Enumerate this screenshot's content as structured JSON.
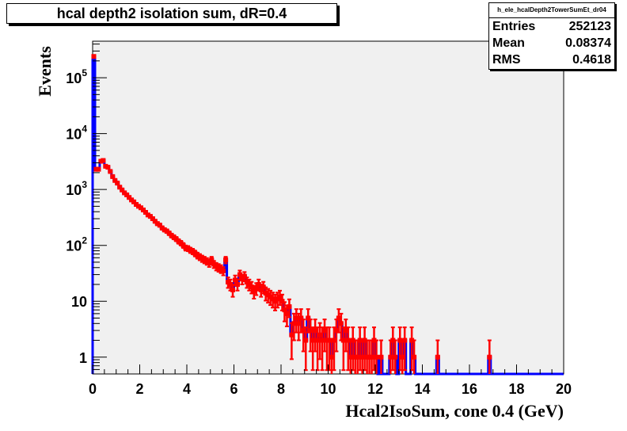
{
  "chart_data": {
    "type": "histogram",
    "title": "hcal depth2 isolation sum, dR=0.4",
    "xlabel": "Hcal2IsoSum, cone 0.4 (GeV)",
    "ylabel": "Events",
    "xlim": [
      0,
      20
    ],
    "ylim": [
      0.5,
      450000
    ],
    "yscale": "log",
    "grid": false,
    "legend": "none",
    "xticks": [
      "0",
      "2",
      "4",
      "6",
      "8",
      "10",
      "12",
      "14",
      "16",
      "18",
      "20"
    ],
    "yticks": [
      {
        "value": 1,
        "label": "1"
      },
      {
        "value": 10,
        "label": "10"
      },
      {
        "value": 100,
        "label": "10^2"
      },
      {
        "value": 1000,
        "label": "10^3"
      },
      {
        "value": 10000,
        "label": "10^4"
      },
      {
        "value": 100000,
        "label": "10^5"
      }
    ],
    "stats": {
      "name": "h_ele_hcalDepth2TowerSumEt_dr04",
      "rows": [
        {
          "label": "Entries",
          "value": "252123"
        },
        {
          "label": "Mean",
          "value": "0.08374"
        },
        {
          "label": "RMS",
          "value": "0.4618"
        }
      ]
    },
    "bin_width": 0.1,
    "line_color": "#0000ff",
    "marker_color": "#ff0000",
    "frame_color": "#f0f0f0",
    "bins": [
      {
        "x": 0.05,
        "y": 240000
      },
      {
        "x": 0.15,
        "y": 2300
      },
      {
        "x": 0.25,
        "y": 2300
      },
      {
        "x": 0.35,
        "y": 3200
      },
      {
        "x": 0.45,
        "y": 3300
      },
      {
        "x": 0.55,
        "y": 2600
      },
      {
        "x": 0.65,
        "y": 2500
      },
      {
        "x": 0.75,
        "y": 2100
      },
      {
        "x": 0.85,
        "y": 1700
      },
      {
        "x": 0.95,
        "y": 1450
      },
      {
        "x": 1.05,
        "y": 1300
      },
      {
        "x": 1.15,
        "y": 1100
      },
      {
        "x": 1.25,
        "y": 980
      },
      {
        "x": 1.35,
        "y": 870
      },
      {
        "x": 1.45,
        "y": 800
      },
      {
        "x": 1.55,
        "y": 720
      },
      {
        "x": 1.65,
        "y": 650
      },
      {
        "x": 1.75,
        "y": 600
      },
      {
        "x": 1.85,
        "y": 540
      },
      {
        "x": 1.95,
        "y": 500
      },
      {
        "x": 2.05,
        "y": 470
      },
      {
        "x": 2.15,
        "y": 430
      },
      {
        "x": 2.25,
        "y": 390
      },
      {
        "x": 2.35,
        "y": 350
      },
      {
        "x": 2.45,
        "y": 330
      },
      {
        "x": 2.55,
        "y": 300
      },
      {
        "x": 2.65,
        "y": 270
      },
      {
        "x": 2.75,
        "y": 245
      },
      {
        "x": 2.85,
        "y": 230
      },
      {
        "x": 2.95,
        "y": 205
      },
      {
        "x": 3.05,
        "y": 190
      },
      {
        "x": 3.15,
        "y": 180
      },
      {
        "x": 3.25,
        "y": 165
      },
      {
        "x": 3.35,
        "y": 150
      },
      {
        "x": 3.45,
        "y": 140
      },
      {
        "x": 3.55,
        "y": 130
      },
      {
        "x": 3.65,
        "y": 118
      },
      {
        "x": 3.75,
        "y": 110
      },
      {
        "x": 3.85,
        "y": 100
      },
      {
        "x": 3.95,
        "y": 90
      },
      {
        "x": 4.05,
        "y": 88
      },
      {
        "x": 4.15,
        "y": 82
      },
      {
        "x": 4.25,
        "y": 78
      },
      {
        "x": 4.35,
        "y": 72
      },
      {
        "x": 4.45,
        "y": 66
      },
      {
        "x": 4.55,
        "y": 62
      },
      {
        "x": 4.65,
        "y": 58
      },
      {
        "x": 4.75,
        "y": 55
      },
      {
        "x": 4.85,
        "y": 52
      },
      {
        "x": 4.95,
        "y": 48
      },
      {
        "x": 5.05,
        "y": 55
      },
      {
        "x": 5.15,
        "y": 46
      },
      {
        "x": 5.25,
        "y": 42
      },
      {
        "x": 5.35,
        "y": 40
      },
      {
        "x": 5.45,
        "y": 38
      },
      {
        "x": 5.55,
        "y": 35
      },
      {
        "x": 5.65,
        "y": 55
      },
      {
        "x": 5.75,
        "y": 22
      },
      {
        "x": 5.85,
        "y": 20
      },
      {
        "x": 5.95,
        "y": 16
      },
      {
        "x": 6.05,
        "y": 24
      },
      {
        "x": 6.15,
        "y": 20
      },
      {
        "x": 6.25,
        "y": 30
      },
      {
        "x": 6.35,
        "y": 25
      },
      {
        "x": 6.45,
        "y": 28
      },
      {
        "x": 6.55,
        "y": 22
      },
      {
        "x": 6.65,
        "y": 20
      },
      {
        "x": 6.75,
        "y": 18
      },
      {
        "x": 6.85,
        "y": 15
      },
      {
        "x": 6.95,
        "y": 17
      },
      {
        "x": 7.05,
        "y": 20
      },
      {
        "x": 7.15,
        "y": 16
      },
      {
        "x": 7.25,
        "y": 18
      },
      {
        "x": 7.35,
        "y": 14
      },
      {
        "x": 7.45,
        "y": 13
      },
      {
        "x": 7.55,
        "y": 12
      },
      {
        "x": 7.65,
        "y": 11
      },
      {
        "x": 7.75,
        "y": 10
      },
      {
        "x": 7.85,
        "y": 11
      },
      {
        "x": 7.95,
        "y": 12
      },
      {
        "x": 8.05,
        "y": 10
      },
      {
        "x": 8.15,
        "y": 7
      },
      {
        "x": 8.25,
        "y": 6
      },
      {
        "x": 8.35,
        "y": 8
      },
      {
        "x": 8.45,
        "y": 2.5
      },
      {
        "x": 8.55,
        "y": 4
      },
      {
        "x": 8.65,
        "y": 5
      },
      {
        "x": 8.75,
        "y": 4
      },
      {
        "x": 8.85,
        "y": 5
      },
      {
        "x": 8.95,
        "y": 3
      },
      {
        "x": 9.05,
        "y": 2
      },
      {
        "x": 9.15,
        "y": 5
      },
      {
        "x": 9.25,
        "y": 3
      },
      {
        "x": 9.35,
        "y": 2
      },
      {
        "x": 9.45,
        "y": 3
      },
      {
        "x": 9.55,
        "y": 2
      },
      {
        "x": 9.65,
        "y": 2.5
      },
      {
        "x": 9.75,
        "y": 2
      },
      {
        "x": 9.85,
        "y": 3
      },
      {
        "x": 9.95,
        "y": 2
      },
      {
        "x": 10.05,
        "y": 2
      },
      {
        "x": 10.15,
        "y": 1
      },
      {
        "x": 10.25,
        "y": 2
      },
      {
        "x": 10.35,
        "y": 3
      },
      {
        "x": 10.45,
        "y": 5
      },
      {
        "x": 10.55,
        "y": 4
      },
      {
        "x": 10.65,
        "y": 2
      },
      {
        "x": 10.75,
        "y": 3
      },
      {
        "x": 10.85,
        "y": 2
      },
      {
        "x": 10.95,
        "y": 1
      },
      {
        "x": 11.05,
        "y": 2
      },
      {
        "x": 11.15,
        "y": 1
      },
      {
        "x": 11.25,
        "y": 1
      },
      {
        "x": 11.35,
        "y": 2
      },
      {
        "x": 11.45,
        "y": 1
      },
      {
        "x": 11.55,
        "y": 2
      },
      {
        "x": 11.65,
        "y": 1
      },
      {
        "x": 11.75,
        "y": 1
      },
      {
        "x": 11.85,
        "y": 1
      },
      {
        "x": 11.95,
        "y": 2
      },
      {
        "x": 12.05,
        "y": 1
      },
      {
        "x": 12.25,
        "y": 1
      },
      {
        "x": 12.65,
        "y": 1
      },
      {
        "x": 12.75,
        "y": 2
      },
      {
        "x": 12.85,
        "y": 1
      },
      {
        "x": 13.05,
        "y": 2
      },
      {
        "x": 13.15,
        "y": 1
      },
      {
        "x": 13.25,
        "y": 2
      },
      {
        "x": 13.55,
        "y": 2
      },
      {
        "x": 13.65,
        "y": 1
      },
      {
        "x": 14.65,
        "y": 1
      },
      {
        "x": 16.85,
        "y": 1
      }
    ]
  }
}
